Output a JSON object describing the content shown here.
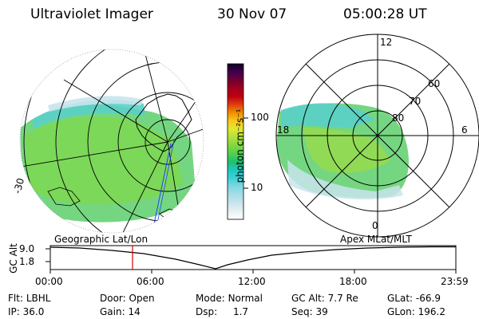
{
  "header": {
    "title": "Ultraviolet Imager",
    "date": "30 Nov 07",
    "time": "05:00:28 UT"
  },
  "colorbar": {
    "unit_label": "photon cm⁻²s⁻¹",
    "ticks": [
      "100",
      "10"
    ],
    "colors": [
      "#ffffff",
      "#e8f0f4",
      "#c8e4ec",
      "#a8dce8",
      "#7fd8e0",
      "#40d0d8",
      "#20c8c0",
      "#20c070",
      "#50d050",
      "#80d840",
      "#b0e040",
      "#e0e830",
      "#f8c820",
      "#f09000",
      "#e04010",
      "#c00010",
      "#a00020",
      "#700030",
      "#400050",
      "#100020"
    ]
  },
  "polar_plot": {
    "lat_labels": [
      "60",
      "70",
      "80"
    ],
    "mlt_labels": [
      "12",
      "18",
      "6",
      "0"
    ]
  },
  "map_labels": {
    "left_label": "-30"
  },
  "timeline": {
    "left_title": "Geographic Lat/Lon",
    "right_title": "Apex  MLat/MLT",
    "y_axis_label": "GC Alt",
    "y_ticks": [
      "9.0",
      "1.8"
    ],
    "x_ticks": [
      "00:00",
      "06:00",
      "12:00",
      "18:00",
      "23:59"
    ],
    "marker_time": "05:00:28"
  },
  "info": {
    "flt_label": "Flt:",
    "flt_value": "LBHL",
    "ip_label": "IP:",
    "ip_value": "36.0",
    "door_label": "Door:",
    "door_value": "Open",
    "gain_label": "Gain:",
    "gain_value": "14",
    "mode_label": "Mode:",
    "mode_value": "Normal",
    "dsp_label": "Dsp:",
    "dsp_value": "1.7",
    "gcalt_label": "GC Alt:",
    "gcalt_value": "7.7 Re",
    "seq_label": "Seq:",
    "seq_value": "39",
    "glat_label": "GLat:",
    "glat_value": "-66.9",
    "glon_label": "GLon:",
    "glon_value": "196.2"
  }
}
